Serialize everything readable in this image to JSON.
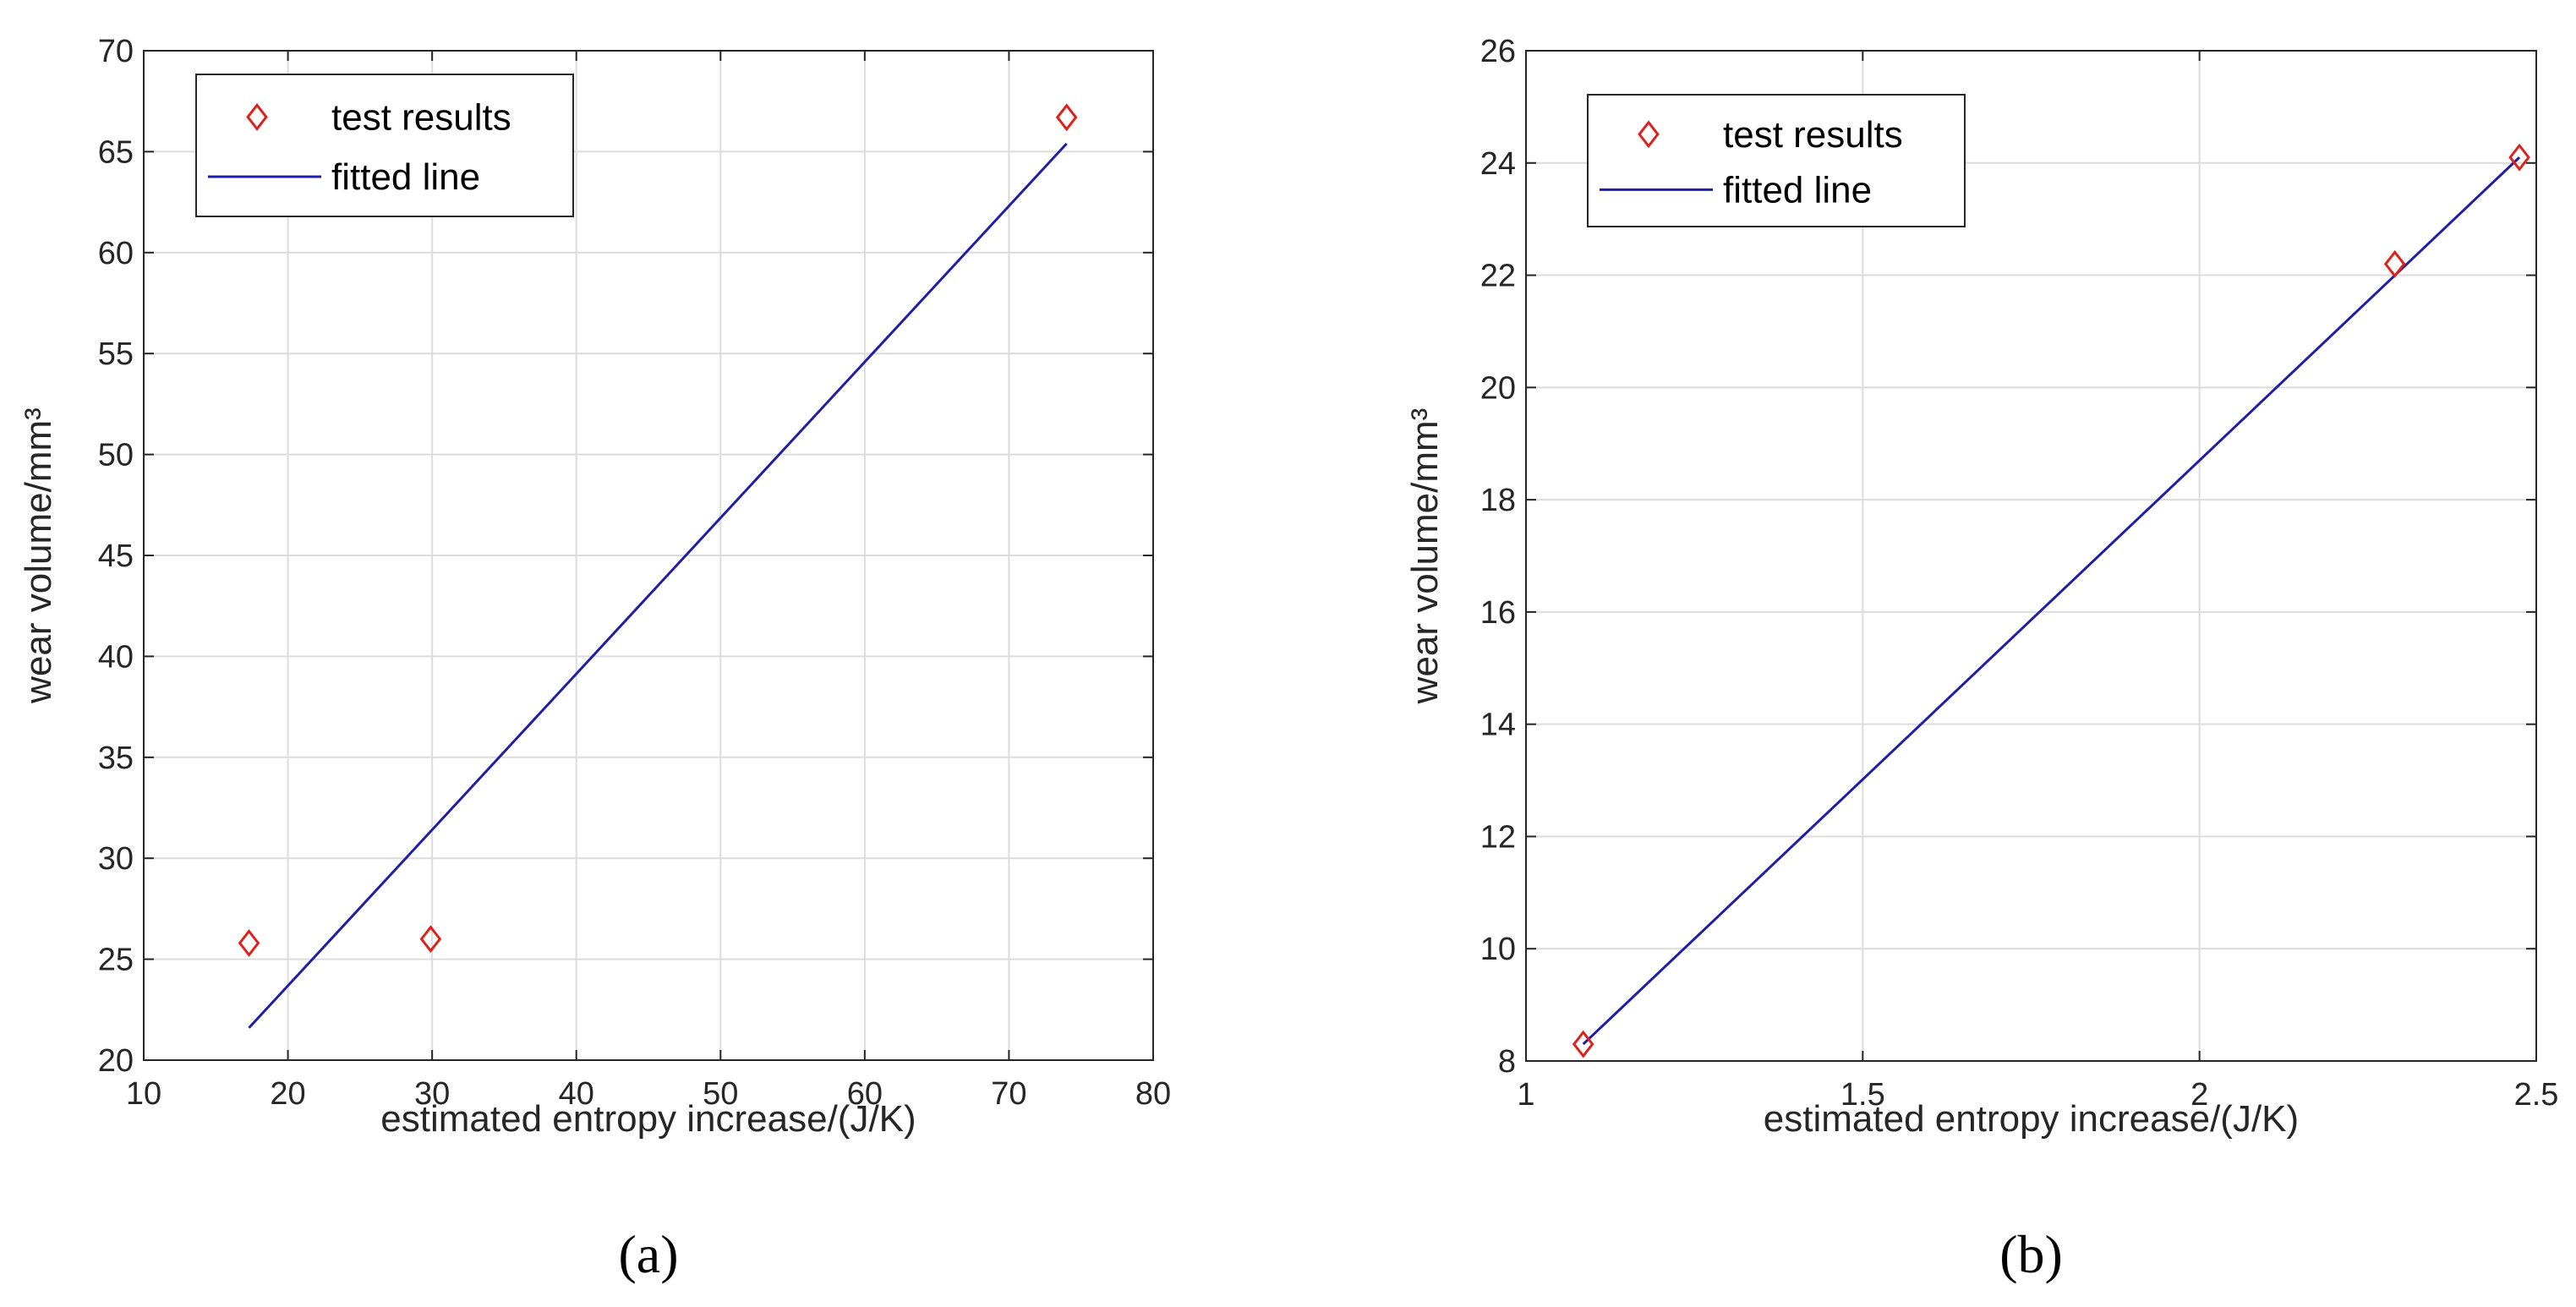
{
  "colors": {
    "marker": "#e0201b",
    "line": "#1e1ea8",
    "grid": "#dcdcdc",
    "axis": "#262626"
  },
  "chart_data": [
    {
      "type": "scatter",
      "panel_label": "(a)",
      "xlabel": "estimated entropy increase/(J/K)",
      "ylabel": "wear volume/mm³",
      "xlim": [
        10,
        80
      ],
      "ylim": [
        20,
        70
      ],
      "xticks": [
        10,
        20,
        30,
        40,
        50,
        60,
        70,
        80
      ],
      "yticks": [
        20,
        25,
        30,
        35,
        40,
        45,
        50,
        55,
        60,
        65,
        70
      ],
      "grid": true,
      "legend": {
        "position": "top-left",
        "entries": [
          "test results",
          "fitted line"
        ]
      },
      "series": [
        {
          "name": "test results",
          "kind": "markers",
          "marker": "diamond",
          "x": [
            17.3,
            29.9,
            74.0
          ],
          "y": [
            25.8,
            26.0,
            66.7
          ]
        },
        {
          "name": "fitted line",
          "kind": "line",
          "x": [
            17.3,
            74.0
          ],
          "y": [
            21.6,
            65.4
          ]
        }
      ]
    },
    {
      "type": "scatter",
      "panel_label": "(b)",
      "xlabel": "estimated entropy increase/(J/K)",
      "ylabel": "wear volume/mm³",
      "xlim": [
        1,
        2.5
      ],
      "ylim": [
        8,
        26
      ],
      "xticks": [
        1,
        1.5,
        2,
        2.5
      ],
      "yticks": [
        8,
        10,
        12,
        14,
        16,
        18,
        20,
        22,
        24,
        26
      ],
      "grid": true,
      "legend": {
        "position": "top-left",
        "entries": [
          "test results",
          "fitted line"
        ]
      },
      "series": [
        {
          "name": "test results",
          "kind": "markers",
          "marker": "diamond",
          "x": [
            1.085,
            2.29,
            2.475
          ],
          "y": [
            8.3,
            22.2,
            24.1
          ]
        },
        {
          "name": "fitted line",
          "kind": "line",
          "x": [
            1.085,
            2.475
          ],
          "y": [
            8.3,
            24.1
          ]
        }
      ]
    }
  ]
}
